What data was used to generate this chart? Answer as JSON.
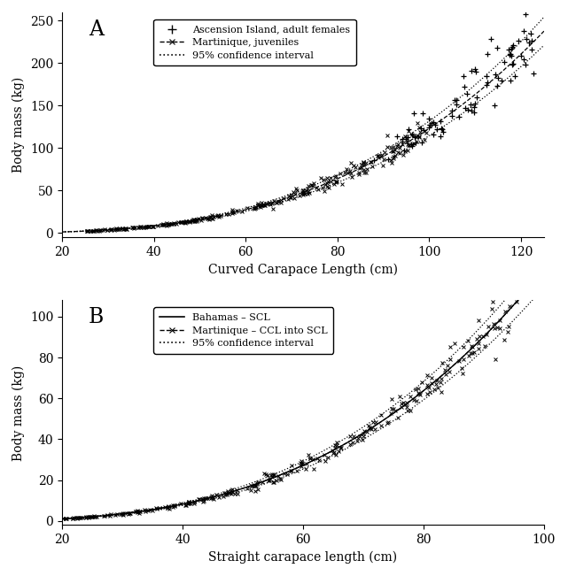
{
  "panel_A": {
    "title": "A",
    "xlabel": "Curved Carapace Length (cm)",
    "ylabel": "Body mass (kg)",
    "xlim": [
      20,
      125
    ],
    "ylim": [
      -5,
      260
    ],
    "xticks": [
      20,
      40,
      60,
      80,
      100,
      120
    ],
    "yticks": [
      0,
      50,
      100,
      150,
      200,
      250
    ],
    "a": 0.000155,
    "b": 2.95,
    "ci_factor": 0.07,
    "legend_labels": [
      "Ascension Island, adult females",
      "Martinique, juveniles",
      "95% confidence interval"
    ]
  },
  "panel_B": {
    "title": "B",
    "xlabel": "Straight carapace length (cm)",
    "ylabel": "Body mass (kg)",
    "xlim": [
      20,
      100
    ],
    "ylim": [
      -2,
      108
    ],
    "xticks": [
      20,
      40,
      60,
      80,
      100
    ],
    "yticks": [
      0,
      20,
      40,
      60,
      80,
      100
    ],
    "a": 0.000155,
    "b": 2.95,
    "ci_factor": 0.07,
    "legend_labels": [
      "Bahamas – SCL",
      "Martinique – CCL into SCL",
      "95% confidence interval"
    ]
  },
  "marker_color": "#000000",
  "line_color": "#000000",
  "bg_color": "#ffffff",
  "font_family": "DejaVu Serif",
  "seed_A_mart": 42,
  "seed_A_asc": 99,
  "seed_B_mart": 7
}
